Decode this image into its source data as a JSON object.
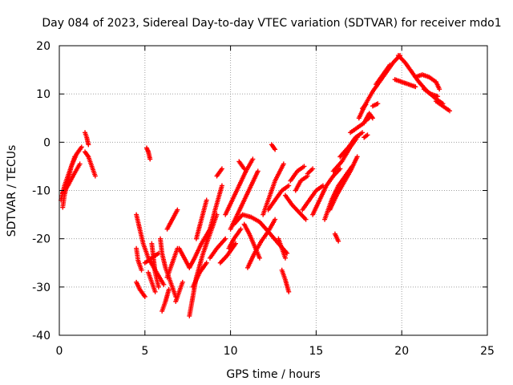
{
  "chart_data": {
    "type": "scatter",
    "title": "Day 084 of 2023, Sidereal Day-to-day VTEC variation (SDTVAR) for receiver mdo1",
    "xlabel": "GPS time / hours",
    "ylabel": "SDTVAR / TECUs",
    "xlim": [
      0,
      25
    ],
    "ylim": [
      -40,
      20
    ],
    "xticks": [
      0,
      5,
      10,
      15,
      20,
      25
    ],
    "yticks": [
      -40,
      -30,
      -20,
      -10,
      0,
      10,
      20
    ],
    "xtick_labels": [
      "0",
      "5",
      "10",
      "15",
      "20",
      "25"
    ],
    "ytick_labels": [
      "-40",
      "-30",
      "-20",
      "-10",
      "0",
      "10",
      "20"
    ],
    "grid": true,
    "marker": "+",
    "series": [
      {
        "name": "SDTVAR",
        "color": "#ff0000",
        "segments": [
          [
            [
              0.2,
              -13.5
            ],
            [
              0.3,
              -11
            ],
            [
              0.5,
              -8
            ],
            [
              0.7,
              -5
            ],
            [
              1.0,
              -2.5
            ],
            [
              1.3,
              -1
            ]
          ],
          [
            [
              0.1,
              -12
            ],
            [
              0.3,
              -9
            ],
            [
              0.6,
              -6
            ],
            [
              0.9,
              -3
            ]
          ],
          [
            [
              0.2,
              -10.5
            ],
            [
              0.5,
              -9
            ],
            [
              0.8,
              -7
            ],
            [
              1.2,
              -4.5
            ]
          ],
          [
            [
              1.5,
              2
            ],
            [
              1.6,
              1
            ],
            [
              1.7,
              -0.5
            ]
          ],
          [
            [
              1.5,
              -2
            ],
            [
              1.7,
              -3
            ],
            [
              1.9,
              -5
            ],
            [
              2.1,
              -7
            ]
          ],
          [
            [
              4.5,
              -15
            ],
            [
              4.7,
              -18
            ],
            [
              4.9,
              -21
            ],
            [
              5.2,
              -24
            ],
            [
              5.6,
              -26.5
            ],
            [
              6.1,
              -29.5
            ]
          ],
          [
            [
              4.5,
              -22
            ],
            [
              4.6,
              -24.5
            ],
            [
              4.8,
              -26.5
            ]
          ],
          [
            [
              4.5,
              -29
            ],
            [
              4.7,
              -30.5
            ],
            [
              5.0,
              -32
            ]
          ],
          [
            [
              5.0,
              -25
            ],
            [
              5.4,
              -24
            ],
            [
              5.8,
              -23
            ]
          ],
          [
            [
              5.4,
              -21
            ],
            [
              5.5,
              -24
            ],
            [
              5.6,
              -27
            ],
            [
              5.8,
              -30
            ]
          ],
          [
            [
              5.1,
              -1.2
            ],
            [
              5.2,
              -2
            ],
            [
              5.3,
              -3.5
            ]
          ],
          [
            [
              5.2,
              -27
            ],
            [
              5.4,
              -29
            ],
            [
              5.6,
              -31
            ]
          ],
          [
            [
              5.9,
              -20
            ],
            [
              6.0,
              -23
            ],
            [
              6.2,
              -26
            ],
            [
              6.5,
              -29
            ],
            [
              6.8,
              -32
            ]
          ],
          [
            [
              6.0,
              -35
            ],
            [
              6.2,
              -33
            ],
            [
              6.4,
              -30.5
            ]
          ],
          [
            [
              6.3,
              -28
            ],
            [
              6.6,
              -25
            ],
            [
              6.9,
              -22
            ]
          ],
          [
            [
              6.3,
              -18
            ],
            [
              6.6,
              -16
            ],
            [
              6.9,
              -14
            ]
          ],
          [
            [
              6.8,
              -33
            ],
            [
              7.0,
              -31
            ],
            [
              7.2,
              -29
            ]
          ],
          [
            [
              7.0,
              -22
            ],
            [
              7.3,
              -24
            ],
            [
              7.6,
              -26
            ]
          ],
          [
            [
              7.6,
              -36
            ],
            [
              7.8,
              -32
            ],
            [
              8.0,
              -28
            ],
            [
              8.4,
              -23
            ],
            [
              8.8,
              -19
            ],
            [
              9.2,
              -15
            ]
          ],
          [
            [
              7.6,
              -26
            ],
            [
              7.9,
              -24
            ],
            [
              8.3,
              -21
            ],
            [
              8.8,
              -18
            ]
          ],
          [
            [
              7.8,
              -30
            ],
            [
              8.2,
              -27
            ],
            [
              8.6,
              -25
            ]
          ],
          [
            [
              8.0,
              -20
            ],
            [
              8.3,
              -16
            ],
            [
              8.6,
              -12
            ]
          ],
          [
            [
              8.5,
              -22
            ],
            [
              8.8,
              -18
            ],
            [
              9.1,
              -14
            ],
            [
              9.5,
              -9
            ]
          ],
          [
            [
              9.2,
              -7
            ],
            [
              9.5,
              -5.5
            ]
          ],
          [
            [
              8.8,
              -24
            ],
            [
              9.2,
              -22
            ],
            [
              9.7,
              -20
            ]
          ],
          [
            [
              9.4,
              -25
            ],
            [
              9.8,
              -23.5
            ],
            [
              10.3,
              -21
            ]
          ],
          [
            [
              9.7,
              -15
            ],
            [
              10.1,
              -12
            ],
            [
              10.5,
              -9
            ],
            [
              10.9,
              -6
            ],
            [
              11.3,
              -3.5
            ]
          ],
          [
            [
              10.0,
              -18
            ],
            [
              10.4,
              -15
            ],
            [
              10.8,
              -12
            ],
            [
              11.2,
              -9
            ],
            [
              11.6,
              -6
            ]
          ],
          [
            [
              9.9,
              -22
            ],
            [
              10.2,
              -20
            ],
            [
              10.6,
              -18
            ]
          ],
          [
            [
              10.5,
              -4
            ],
            [
              10.8,
              -5.5
            ]
          ],
          [
            [
              10.2,
              -17
            ],
            [
              10.7,
              -15
            ],
            [
              11.2,
              -15.5
            ],
            [
              11.7,
              -16.5
            ],
            [
              12.2,
              -18.5
            ],
            [
              12.8,
              -21
            ],
            [
              13.3,
              -23
            ]
          ],
          [
            [
              11.0,
              -26
            ],
            [
              11.4,
              -23
            ],
            [
              11.8,
              -20.5
            ],
            [
              12.2,
              -18.5
            ],
            [
              12.6,
              -16
            ]
          ],
          [
            [
              10.8,
              -17
            ],
            [
              11.1,
              -19
            ],
            [
              11.4,
              -21.5
            ],
            [
              11.7,
              -24
            ]
          ],
          [
            [
              11.9,
              -15
            ],
            [
              12.2,
              -12
            ],
            [
              12.6,
              -8
            ],
            [
              13.1,
              -4.5
            ]
          ],
          [
            [
              12.2,
              -14
            ],
            [
              12.6,
              -12
            ],
            [
              13.0,
              -10
            ],
            [
              13.4,
              -9
            ]
          ],
          [
            [
              12.4,
              -0.5
            ],
            [
              12.6,
              -1.5
            ]
          ],
          [
            [
              12.8,
              -20
            ],
            [
              13.0,
              -22
            ],
            [
              13.2,
              -24
            ]
          ],
          [
            [
              13.0,
              -26.5
            ],
            [
              13.2,
              -28.5
            ],
            [
              13.4,
              -31
            ]
          ],
          [
            [
              13.2,
              -11
            ],
            [
              13.6,
              -13
            ],
            [
              14.0,
              -14.5
            ],
            [
              14.4,
              -16
            ]
          ],
          [
            [
              13.5,
              -8
            ],
            [
              13.9,
              -6
            ],
            [
              14.3,
              -5
            ]
          ],
          [
            [
              13.8,
              -10
            ],
            [
              14.1,
              -8
            ],
            [
              14.5,
              -7
            ]
          ],
          [
            [
              14.2,
              -14
            ],
            [
              14.6,
              -12
            ],
            [
              15.0,
              -10
            ],
            [
              15.4,
              -9
            ]
          ],
          [
            [
              14.8,
              -15
            ],
            [
              15.2,
              -12
            ],
            [
              15.6,
              -9
            ],
            [
              16.0,
              -7
            ],
            [
              16.4,
              -5.5
            ]
          ],
          [
            [
              14.5,
              -6.5
            ],
            [
              14.8,
              -5.5
            ]
          ],
          [
            [
              15.5,
              -16
            ],
            [
              15.9,
              -12
            ],
            [
              16.3,
              -9
            ],
            [
              16.7,
              -7
            ],
            [
              17.1,
              -5
            ]
          ],
          [
            [
              15.8,
              -14
            ],
            [
              16.2,
              -11
            ],
            [
              16.6,
              -8.5
            ],
            [
              17.0,
              -6
            ],
            [
              17.4,
              -3
            ]
          ],
          [
            [
              16.0,
              -6
            ],
            [
              16.5,
              -4
            ],
            [
              17.0,
              -1
            ],
            [
              17.4,
              1
            ]
          ],
          [
            [
              16.1,
              -19
            ],
            [
              16.3,
              -20.5
            ]
          ],
          [
            [
              16.4,
              -3
            ],
            [
              16.9,
              -1
            ],
            [
              17.3,
              1
            ],
            [
              17.7,
              2
            ]
          ],
          [
            [
              17.0,
              2
            ],
            [
              17.4,
              3
            ],
            [
              17.8,
              4
            ]
          ],
          [
            [
              17.5,
              5
            ],
            [
              17.9,
              8
            ],
            [
              18.3,
              10.5
            ],
            [
              18.7,
              12.5
            ],
            [
              19.1,
              14.5
            ],
            [
              19.5,
              16.5
            ],
            [
              19.9,
              18
            ]
          ],
          [
            [
              18.5,
              12
            ],
            [
              18.9,
              14
            ],
            [
              19.3,
              16
            ]
          ],
          [
            [
              17.8,
              4
            ],
            [
              18.1,
              6
            ],
            [
              18.3,
              5
            ]
          ],
          [
            [
              17.8,
              1
            ],
            [
              18.0,
              1.5
            ]
          ],
          [
            [
              17.9,
              4.5
            ],
            [
              18.1,
              5
            ]
          ],
          [
            [
              18.3,
              7.5
            ],
            [
              18.6,
              8
            ]
          ],
          [
            [
              17.7,
              7
            ],
            [
              17.9,
              7.8
            ]
          ],
          [
            [
              19.8,
              18
            ],
            [
              20.2,
              16.5
            ],
            [
              20.6,
              14.5
            ],
            [
              21.0,
              12.5
            ],
            [
              21.5,
              10.5
            ],
            [
              22.0,
              9
            ],
            [
              22.4,
              8
            ]
          ],
          [
            [
              19.6,
              13
            ],
            [
              20.0,
              12.5
            ],
            [
              20.4,
              12
            ],
            [
              20.8,
              11.5
            ]
          ],
          [
            [
              20.8,
              13.5
            ],
            [
              21.2,
              14
            ],
            [
              21.6,
              13.5
            ],
            [
              22.0,
              12.5
            ],
            [
              22.2,
              11
            ]
          ],
          [
            [
              21.3,
              11
            ],
            [
              21.7,
              10
            ],
            [
              22.1,
              9.5
            ]
          ],
          [
            [
              22.0,
              8.5
            ],
            [
              22.4,
              7.5
            ],
            [
              22.8,
              6.5
            ]
          ]
        ]
      }
    ]
  }
}
